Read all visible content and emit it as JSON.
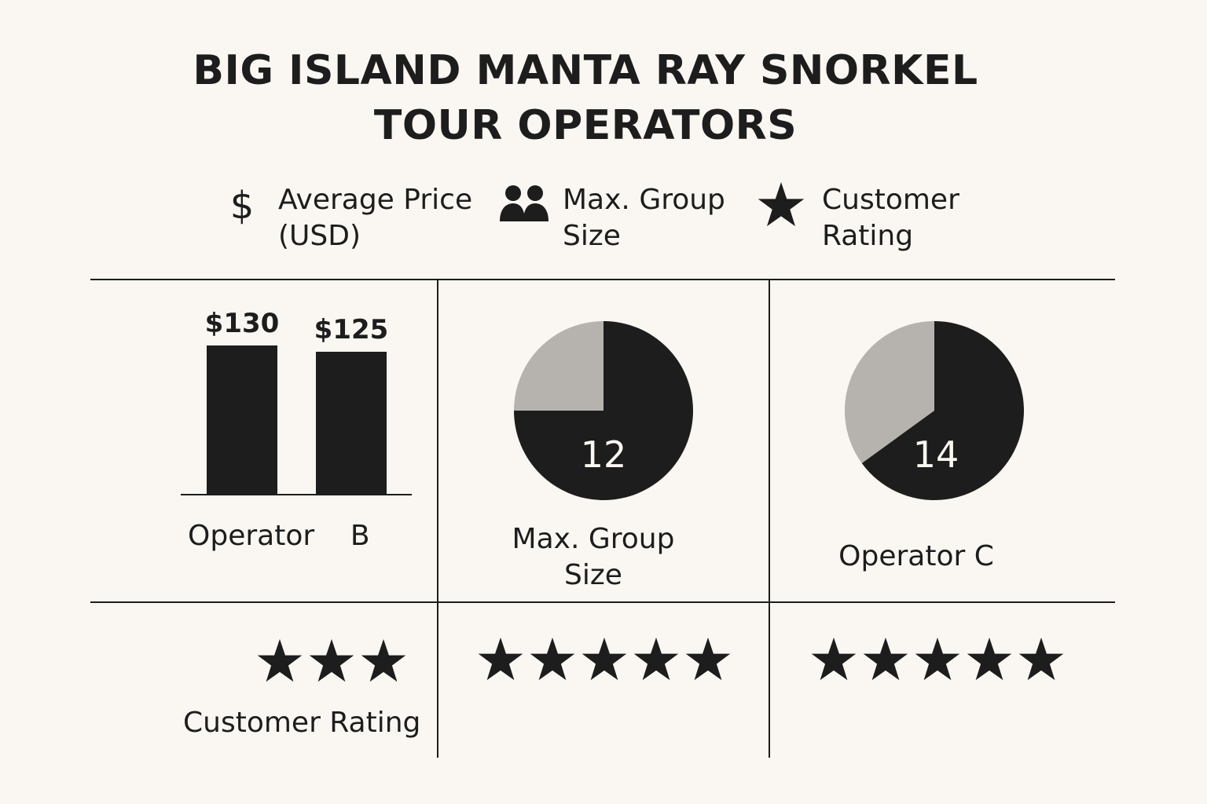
{
  "title": {
    "line1": "BIG ISLAND MANTA RAY SNORKEL",
    "line2": "TOUR OPERATORS"
  },
  "legend": [
    {
      "icon": "dollar-icon",
      "label": "Average Price\n(USD)"
    },
    {
      "icon": "people-icon",
      "label": "Max. Group\nSize"
    },
    {
      "icon": "star-icon",
      "label": "Customer\nRating"
    }
  ],
  "colors": {
    "dark": "#1d1d1d",
    "light": "#b6b3ae",
    "background": "#faf7f2"
  },
  "chart_data": [
    {
      "type": "bar",
      "categories": [
        "",
        ""
      ],
      "values": [
        130,
        125
      ],
      "value_labels": [
        "$130",
        "$125"
      ],
      "label": "Operator    B"
    },
    {
      "type": "pie",
      "value": 12,
      "value_label": "12",
      "dark_fraction": 0.75,
      "label": "Max. Group\nSize"
    },
    {
      "type": "pie",
      "value": 14,
      "value_label": "14",
      "dark_fraction": 0.65,
      "label": "Operator C"
    }
  ],
  "ratings": [
    {
      "stars": 3,
      "label": "Customer Rating"
    },
    {
      "stars": 5,
      "label": ""
    },
    {
      "stars": 5,
      "label": ""
    }
  ]
}
